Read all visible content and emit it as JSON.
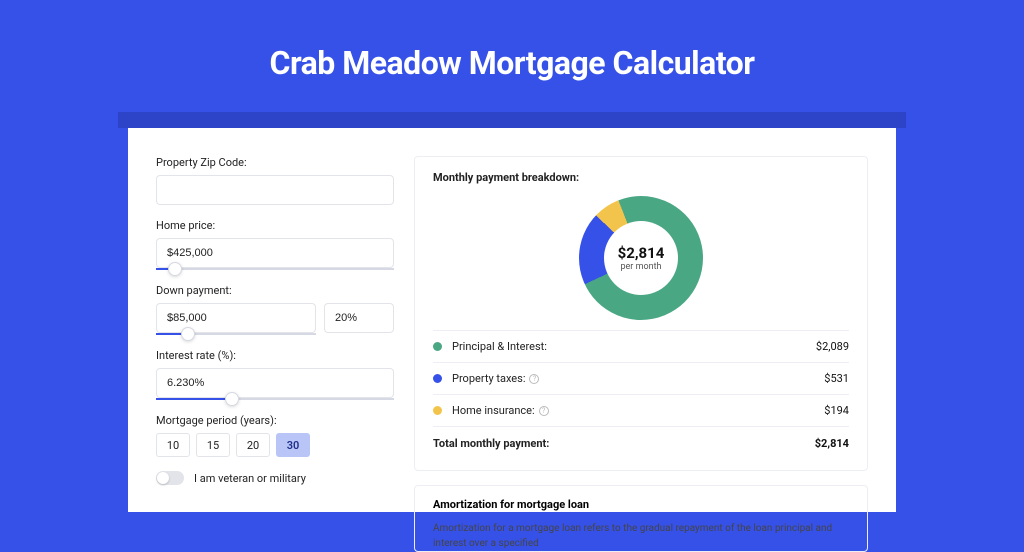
{
  "page": {
    "title": "Crab Meadow Mortgage Calculator",
    "background_color": "#3651e8",
    "panel_bg": "#ffffff",
    "shadow_bg": "#2d44c9"
  },
  "form": {
    "zip": {
      "label": "Property Zip Code:",
      "value": ""
    },
    "home_price": {
      "label": "Home price:",
      "value": "$425,000",
      "slider_pct": 8
    },
    "down_payment": {
      "label": "Down payment:",
      "value": "$85,000",
      "pct_value": "20%",
      "slider_pct": 20
    },
    "interest_rate": {
      "label": "Interest rate (%):",
      "value": "6.230%",
      "slider_pct": 32
    },
    "period": {
      "label": "Mortgage period (years):",
      "options": [
        "10",
        "15",
        "20",
        "30"
      ],
      "selected": "30"
    },
    "veteran": {
      "label": "I am veteran or military",
      "checked": false
    }
  },
  "breakdown": {
    "title": "Monthly payment breakdown:",
    "center_amount": "$2,814",
    "center_sub": "per month",
    "segments": [
      {
        "key": "principal_interest",
        "label": "Principal & Interest:",
        "value": "$2,089",
        "color": "#4aa784",
        "pct": 74,
        "info": false
      },
      {
        "key": "property_taxes",
        "label": "Property taxes:",
        "value": "$531",
        "color": "#3651e8",
        "pct": 19,
        "info": true
      },
      {
        "key": "home_insurance",
        "label": "Home insurance:",
        "value": "$194",
        "color": "#f3c44b",
        "pct": 7,
        "info": true
      }
    ],
    "total": {
      "label": "Total monthly payment:",
      "value": "$2,814"
    }
  },
  "amortization": {
    "title": "Amortization for mortgage loan",
    "body": "Amortization for a mortgage loan refers to the gradual repayment of the loan principal and interest over a specified"
  }
}
